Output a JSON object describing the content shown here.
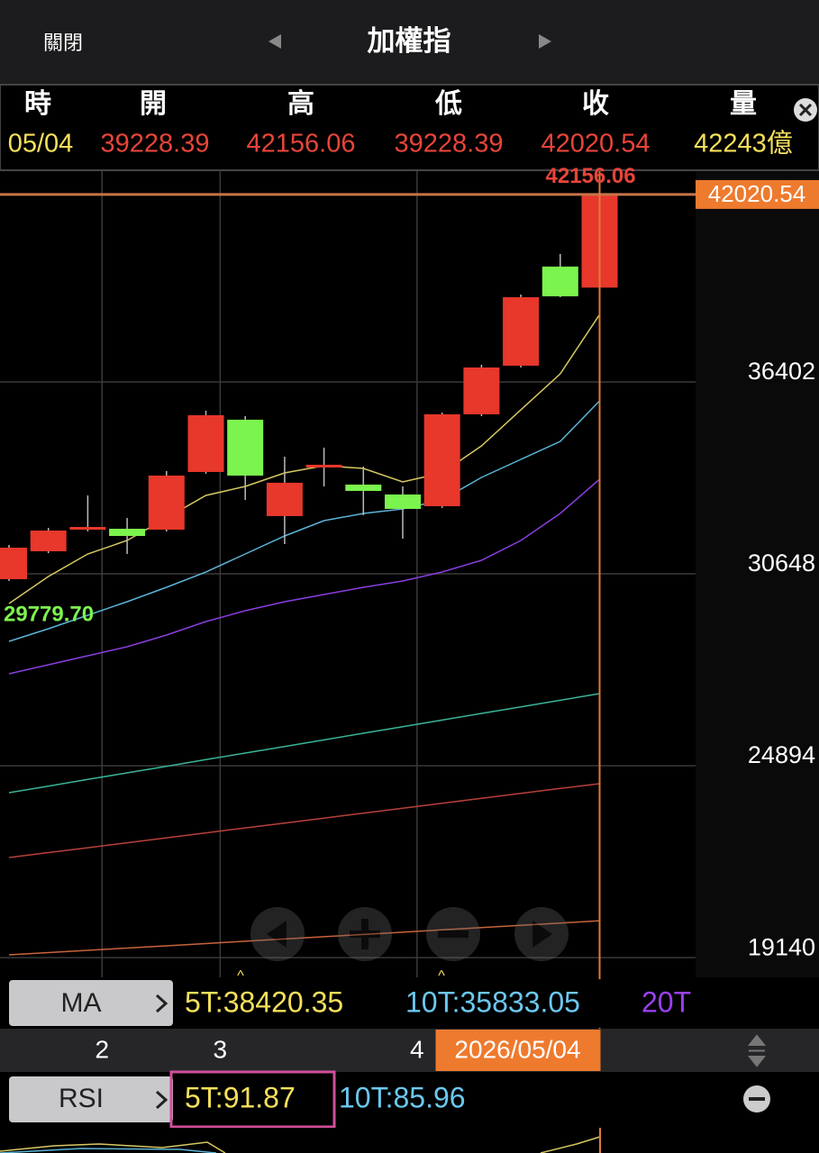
{
  "top_bar": {
    "close": "關閉",
    "title": "加權指"
  },
  "quote": {
    "headers": [
      "時",
      "開",
      "高",
      "低",
      "收",
      "量"
    ],
    "values": [
      "05/04",
      "39228.39",
      "42156.06",
      "39228.39",
      "42020.54",
      "42243億"
    ]
  },
  "chart_data": {
    "type": "candlestick",
    "categories": [
      null,
      null,
      "2",
      null,
      null,
      "3",
      null,
      null,
      null,
      null,
      "4",
      null,
      null,
      null,
      null,
      "2026/05/04"
    ],
    "open": [
      30487,
      31324,
      31972,
      31999,
      31972,
      33701,
      35268,
      32378,
      33836,
      33323,
      33026,
      32675,
      35430,
      36888,
      39859,
      39228.39
    ],
    "high": [
      31513,
      32026,
      33000,
      32323,
      33728,
      35538,
      35376,
      34160,
      34430,
      33863,
      33269,
      35484,
      36915,
      39021,
      40237,
      42156.06
    ],
    "low": [
      30433,
      31270,
      31918,
      31243,
      31918,
      33647,
      32864,
      31540,
      33269,
      32405,
      31702,
      32621,
      35376,
      36834,
      38941,
      39228.39
    ],
    "close": [
      31432,
      31945,
      32053,
      31783,
      33593,
      35403,
      33593,
      33377,
      33917,
      33134,
      32594,
      35430,
      36834,
      38941,
      38968,
      42020.54
    ],
    "up_color": "#e8372b",
    "down_color": "#7cf44e",
    "ylim": [
      18550,
      42720
    ],
    "yticks": [
      19140,
      24894,
      30648,
      36402
    ],
    "last_price": 42020.54,
    "high_annotation": 42156.06,
    "low_annotation": {
      "value": 29779.7,
      "label": "29779.70"
    },
    "ma_lines": [
      {
        "color": "#d8c860",
        "values": [
          29758,
          30568,
          31243,
          31648,
          32323,
          32999,
          33269,
          33674,
          33890,
          33809,
          33404,
          33674,
          34484,
          35565,
          36645,
          38420.35
        ]
      },
      {
        "color": "#5ab4d6",
        "values": [
          28623,
          29001,
          29406,
          29812,
          30244,
          30703,
          31243,
          31783,
          32242,
          32459,
          32594,
          32864,
          33539,
          34079,
          34619,
          35833.05
        ]
      },
      {
        "color": "#8a3ee0",
        "values": [
          27651,
          27921,
          28191,
          28461,
          28812,
          29217,
          29541,
          29812,
          30028,
          30244,
          30433,
          30703,
          31054,
          31648,
          32459,
          33485
        ]
      },
      {
        "color": "#3bb39a",
        "values": [
          24086,
          24284,
          24482,
          24680,
          24878,
          25076,
          25274,
          25472,
          25670,
          25868,
          26066,
          26264,
          26462,
          26660,
          26858,
          27057
        ]
      },
      {
        "color": "#b8403c",
        "values": [
          22141,
          22289,
          22437,
          22585,
          22733,
          22881,
          23029,
          23177,
          23325,
          23473,
          23621,
          23769,
          23917,
          24065,
          24213,
          24356
        ]
      },
      {
        "color": "#c8643a",
        "values": [
          19224,
          19292,
          19360,
          19428,
          19496,
          19564,
          19632,
          19700,
          19768,
          19836,
          19904,
          19972,
          20040,
          20108,
          20176,
          20250
        ]
      }
    ]
  },
  "indicators": {
    "ma": {
      "button": "MA",
      "items": [
        {
          "text": "5T:38420.35",
          "color": "#f5e05a"
        },
        {
          "text": "10T:35833.05",
          "color": "#6cc8f0"
        },
        {
          "text": "20T",
          "color": "#9a40f0"
        }
      ]
    },
    "rsi": {
      "button": "RSI",
      "items": [
        {
          "text": "5T:91.87",
          "color": "#f5e05a"
        },
        {
          "text": "10T:85.96",
          "color": "#6cc8f0"
        }
      ]
    }
  }
}
